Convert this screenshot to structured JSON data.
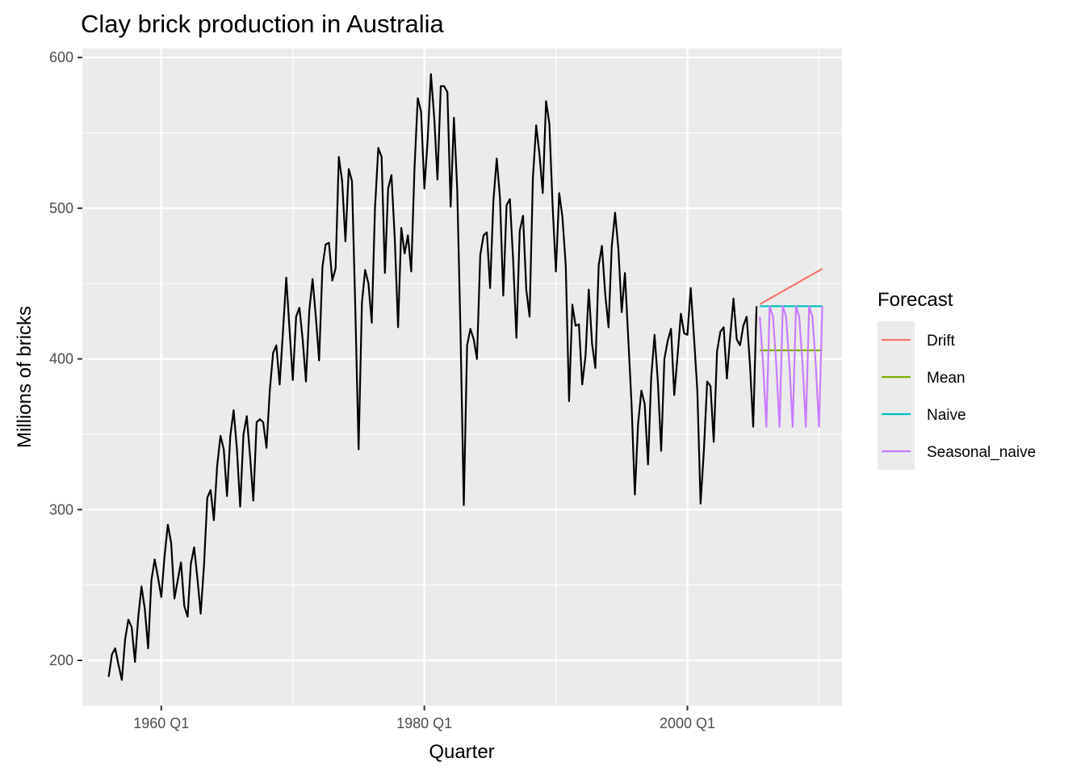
{
  "chart_data": {
    "type": "line",
    "title": "Clay brick production in Australia",
    "xlabel": "Quarter",
    "ylabel": "Millions of bricks",
    "ylim": [
      170,
      606
    ],
    "xlim": [
      1954.0,
      2011.75
    ],
    "grid": true,
    "x_ticks": [
      {
        "value": 1960.0,
        "label": "1960 Q1"
      },
      {
        "value": 1980.0,
        "label": "1980 Q1"
      },
      {
        "value": 2000.0,
        "label": "2000 Q1"
      }
    ],
    "y_ticks": [
      200,
      300,
      400,
      500,
      600
    ],
    "history": {
      "start": "1956 Q1",
      "frequency": "quarterly",
      "color": "#000000",
      "values": [
        189,
        204,
        208,
        197,
        187,
        214,
        227,
        222,
        199,
        229,
        249,
        234,
        208,
        253,
        267,
        255,
        242,
        269,
        290,
        278,
        241,
        253,
        265,
        236,
        229,
        264,
        275,
        254,
        231,
        263,
        308,
        313,
        293,
        329,
        349,
        340,
        309,
        349,
        366,
        340,
        302,
        350,
        362,
        335,
        306,
        358,
        360,
        358,
        341,
        379,
        404,
        409,
        383,
        418,
        454,
        420,
        386,
        428,
        434,
        413,
        385,
        432,
        453,
        428,
        399,
        461,
        476,
        477,
        452,
        460,
        534,
        518,
        478,
        526,
        518,
        434,
        340,
        437,
        459,
        450,
        424,
        500,
        540,
        534,
        457,
        513,
        522,
        480,
        421,
        487,
        470,
        482,
        458,
        526,
        573,
        564,
        513,
        545,
        589,
        560,
        519,
        581,
        581,
        577,
        501,
        560,
        512,
        416,
        303,
        409,
        420,
        413,
        400,
        469,
        482,
        484,
        447,
        505,
        533,
        507,
        442,
        502,
        506,
        466,
        414,
        485,
        495,
        446,
        428,
        520,
        555,
        536,
        510,
        571,
        556,
        502,
        458,
        510,
        494,
        462,
        372,
        436,
        422,
        423,
        383,
        402,
        446,
        410,
        394,
        462,
        475,
        443,
        421,
        475,
        497,
        473,
        431,
        457,
        414,
        370,
        310,
        357,
        379,
        370,
        330,
        388,
        416,
        385,
        339,
        400,
        412,
        420,
        376,
        402,
        430,
        417,
        416,
        447,
        414,
        379,
        304,
        339,
        385,
        382,
        345,
        405,
        418,
        421,
        387,
        415,
        440,
        413,
        409,
        422,
        428,
        397,
        355,
        435
      ]
    },
    "forecast_start": "2005 Q3",
    "forecast_horizon": 20,
    "legend": {
      "title": "Forecast",
      "position": "right"
    },
    "series": [
      {
        "name": "Drift",
        "color": "#F8766D",
        "values": [
          436.24,
          437.48,
          438.72,
          439.96,
          441.2,
          442.44,
          443.68,
          444.92,
          446.16,
          447.4,
          448.64,
          449.88,
          451.12,
          452.36,
          453.6,
          454.84,
          456.08,
          457.32,
          458.56,
          459.8
        ]
      },
      {
        "name": "Mean",
        "color": "#7CAE00",
        "values": [
          405.7,
          405.7,
          405.7,
          405.7,
          405.7,
          405.7,
          405.7,
          405.7,
          405.7,
          405.7,
          405.7,
          405.7,
          405.7,
          405.7,
          405.7,
          405.7,
          405.7,
          405.7,
          405.7,
          405.7
        ]
      },
      {
        "name": "Naive",
        "color": "#00BFC4",
        "values": [
          435,
          435,
          435,
          435,
          435,
          435,
          435,
          435,
          435,
          435,
          435,
          435,
          435,
          435,
          435,
          435,
          435,
          435,
          435,
          435
        ]
      },
      {
        "name": "Seasonal_naive",
        "color": "#C77CFF",
        "values": [
          428,
          397,
          355,
          435,
          428,
          397,
          355,
          435,
          428,
          397,
          355,
          435,
          428,
          397,
          355,
          435,
          428,
          397,
          355,
          435
        ]
      }
    ]
  }
}
